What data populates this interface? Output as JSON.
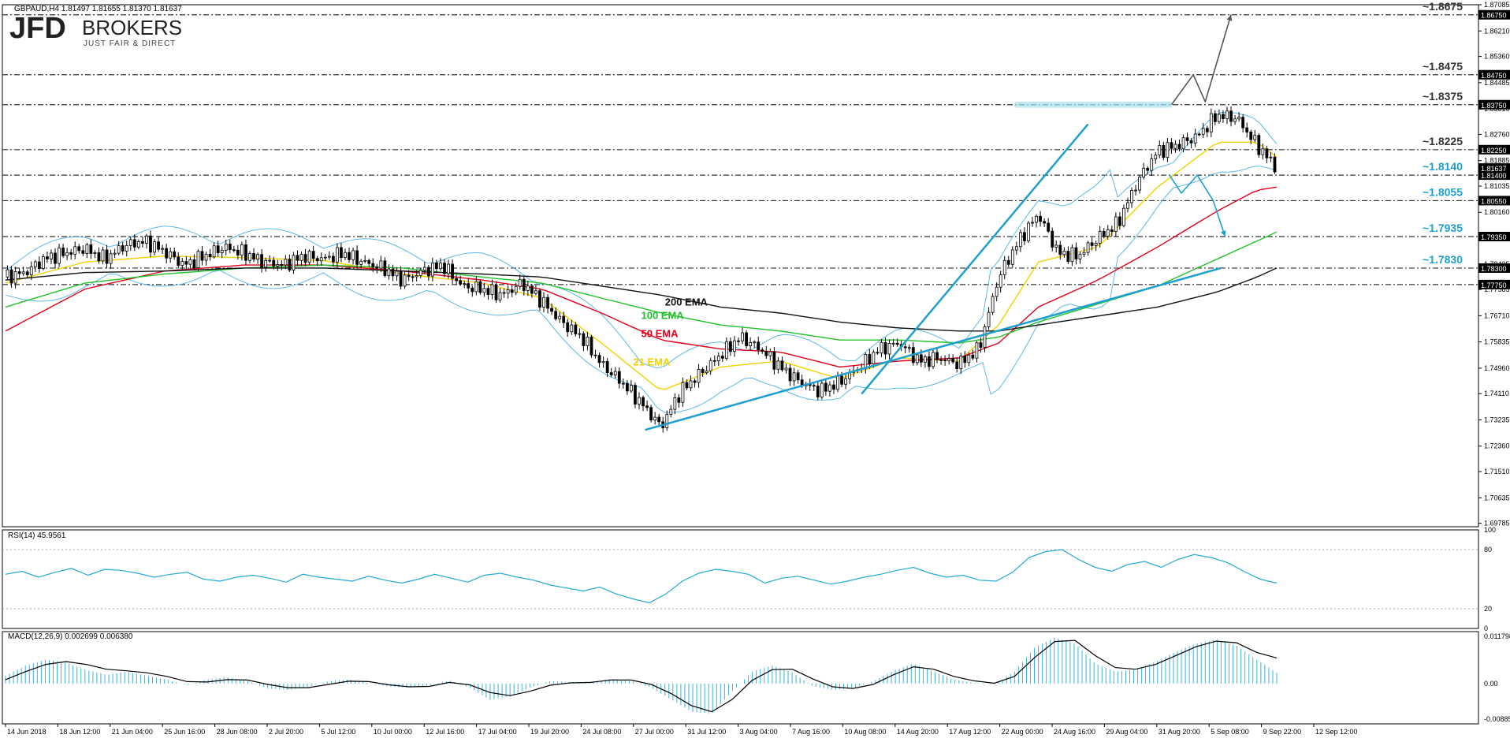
{
  "header": {
    "symbol_line": "GBPAUD,H4  1.81497 1.81655 1.81370 1.81637",
    "brand_main": "JFD",
    "brand_side": "BROKERS",
    "tagline": "JUST FAIR & DIRECT"
  },
  "colors": {
    "candle": "#000000",
    "bollinger": "#5eb8e8",
    "ema21": "#f2d200",
    "ema50": "#e0001a",
    "ema100": "#22c02a",
    "ema200": "#111111",
    "trendline": "#1e9fd0",
    "level_blue": "#1e9fd0",
    "level_dark": "#333333",
    "rsi": "#24a8d4",
    "macd_hist": "#3bb3db",
    "macd_signal": "#000000",
    "arrow_up": "#555555",
    "arrow_down": "#1e9fd0",
    "resistance_band": "#a8e1ef"
  },
  "chart_data": [
    {
      "type": "candlestick",
      "panel": "main",
      "title": "GBPAUD,H4",
      "ohlc_last": {
        "open": 1.81497,
        "high": 1.81655,
        "low": 1.8137,
        "close": 1.81637
      },
      "ylim": [
        1.6967,
        1.87085
      ],
      "y_ticks": [
        "1.87085",
        "1.86210",
        "1.85360",
        "1.84485",
        "1.83610",
        "1.82760",
        "1.81885",
        "1.81035",
        "1.80160",
        "1.79310",
        "1.78435",
        "1.77585",
        "1.76710",
        "1.75835",
        "1.74960",
        "1.74110",
        "1.73235",
        "1.72360",
        "1.71510",
        "1.70635",
        "1.69785"
      ],
      "x_ticks": [
        "14 Jun 2018",
        "18 Jun 12:00",
        "21 Jun 04:00",
        "25 Jun 16:00",
        "28 Jun 08:00",
        "2 Jul 20:00",
        "5 Jul 12:00",
        "10 Jul 00:00",
        "12 Jul 16:00",
        "17 Jul 04:00",
        "19 Jul 20:00",
        "24 Jul 08:00",
        "27 Jul 00:00",
        "31 Jul 12:00",
        "3 Aug 04:00",
        "7 Aug 16:00",
        "10 Aug 08:00",
        "14 Aug 20:00",
        "17 Aug 12:00",
        "22 Aug 00:00",
        "24 Aug 16:00",
        "29 Aug 04:00",
        "31 Aug 20:00",
        "5 Sep 08:00",
        "9 Sep 22:00",
        "12 Sep 12:00"
      ],
      "close_path": [
        [
          0,
          1.78
        ],
        [
          10,
          1.7815
        ],
        [
          20,
          1.7862
        ],
        [
          30,
          1.788
        ],
        [
          40,
          1.7895
        ],
        [
          50,
          1.786
        ],
        [
          60,
          1.7905
        ],
        [
          70,
          1.792
        ],
        [
          80,
          1.7885
        ],
        [
          90,
          1.784
        ],
        [
          100,
          1.787
        ],
        [
          110,
          1.79
        ],
        [
          120,
          1.788
        ],
        [
          130,
          1.785
        ],
        [
          140,
          1.784
        ],
        [
          150,
          1.787
        ],
        [
          160,
          1.786
        ],
        [
          170,
          1.788
        ],
        [
          180,
          1.785
        ],
        [
          190,
          1.783
        ],
        [
          200,
          1.779
        ],
        [
          210,
          1.782
        ],
        [
          220,
          1.784
        ],
        [
          230,
          1.777
        ],
        [
          240,
          1.776
        ],
        [
          250,
          1.774
        ],
        [
          260,
          1.778
        ],
        [
          270,
          1.772
        ],
        [
          280,
          1.765
        ],
        [
          290,
          1.76
        ],
        [
          300,
          1.751
        ],
        [
          310,
          1.745
        ],
        [
          320,
          1.738
        ],
        [
          330,
          1.73
        ],
        [
          340,
          1.742
        ],
        [
          350,
          1.748
        ],
        [
          360,
          1.754
        ],
        [
          370,
          1.76
        ],
        [
          380,
          1.756
        ],
        [
          390,
          1.75
        ],
        [
          400,
          1.745
        ],
        [
          410,
          1.742
        ],
        [
          420,
          1.745
        ],
        [
          430,
          1.75
        ],
        [
          440,
          1.756
        ],
        [
          450,
          1.758
        ],
        [
          460,
          1.752
        ],
        [
          470,
          1.753
        ],
        [
          480,
          1.751
        ],
        [
          490,
          1.756
        ],
        [
          500,
          1.78
        ],
        [
          510,
          1.792
        ],
        [
          520,
          1.801
        ],
        [
          530,
          1.788
        ],
        [
          540,
          1.787
        ],
        [
          550,
          1.793
        ],
        [
          560,
          1.798
        ],
        [
          570,
          1.812
        ],
        [
          580,
          1.822
        ],
        [
          590,
          1.824
        ],
        [
          600,
          1.827
        ],
        [
          610,
          1.834
        ],
        [
          620,
          1.833
        ],
        [
          630,
          1.824
        ],
        [
          640,
          1.8164
        ]
      ],
      "series": [
        {
          "name": "21 EMA",
          "color": "ema21",
          "points": [
            [
              0,
              1.778
            ],
            [
              40,
              1.785
            ],
            [
              80,
              1.787
            ],
            [
              120,
              1.7865
            ],
            [
              160,
              1.7855
            ],
            [
              200,
              1.781
            ],
            [
              240,
              1.778
            ],
            [
              270,
              1.773
            ],
            [
              300,
              1.758
            ],
            [
              330,
              1.742
            ],
            [
              360,
              1.75
            ],
            [
              390,
              1.752
            ],
            [
              420,
              1.746
            ],
            [
              450,
              1.753
            ],
            [
              480,
              1.752
            ],
            [
              500,
              1.764
            ],
            [
              520,
              1.785
            ],
            [
              550,
              1.79
            ],
            [
              580,
              1.81
            ],
            [
              610,
              1.825
            ],
            [
              630,
              1.825
            ],
            [
              640,
              1.82
            ]
          ]
        },
        {
          "name": "50 EMA",
          "color": "ema50",
          "points": [
            [
              0,
              1.762
            ],
            [
              40,
              1.776
            ],
            [
              80,
              1.782
            ],
            [
              120,
              1.784
            ],
            [
              160,
              1.784
            ],
            [
              200,
              1.782
            ],
            [
              240,
              1.779
            ],
            [
              270,
              1.776
            ],
            [
              300,
              1.768
            ],
            [
              330,
              1.759
            ],
            [
              360,
              1.756
            ],
            [
              390,
              1.755
            ],
            [
              420,
              1.75
            ],
            [
              450,
              1.752
            ],
            [
              480,
              1.753
            ],
            [
              500,
              1.758
            ],
            [
              520,
              1.77
            ],
            [
              550,
              1.779
            ],
            [
              580,
              1.79
            ],
            [
              610,
              1.802
            ],
            [
              630,
              1.809
            ],
            [
              640,
              1.81
            ]
          ]
        },
        {
          "name": "100 EMA",
          "color": "ema100",
          "points": [
            [
              0,
              1.77
            ],
            [
              40,
              1.778
            ],
            [
              80,
              1.781
            ],
            [
              120,
              1.783
            ],
            [
              160,
              1.784
            ],
            [
              200,
              1.783
            ],
            [
              240,
              1.78
            ],
            [
              270,
              1.778
            ],
            [
              300,
              1.773
            ],
            [
              330,
              1.768
            ],
            [
              360,
              1.764
            ],
            [
              390,
              1.762
            ],
            [
              420,
              1.759
            ],
            [
              450,
              1.759
            ],
            [
              480,
              1.758
            ],
            [
              500,
              1.76
            ],
            [
              520,
              1.765
            ],
            [
              550,
              1.771
            ],
            [
              580,
              1.777
            ],
            [
              610,
              1.786
            ],
            [
              630,
              1.792
            ],
            [
              640,
              1.795
            ]
          ]
        },
        {
          "name": "200 EMA",
          "color": "ema200",
          "points": [
            [
              0,
              1.779
            ],
            [
              40,
              1.7815
            ],
            [
              80,
              1.782
            ],
            [
              120,
              1.783
            ],
            [
              160,
              1.783
            ],
            [
              200,
              1.782
            ],
            [
              240,
              1.781
            ],
            [
              270,
              1.78
            ],
            [
              300,
              1.777
            ],
            [
              330,
              1.774
            ],
            [
              360,
              1.77
            ],
            [
              390,
              1.768
            ],
            [
              420,
              1.765
            ],
            [
              450,
              1.763
            ],
            [
              480,
              1.762
            ],
            [
              500,
              1.762
            ],
            [
              520,
              1.764
            ],
            [
              550,
              1.767
            ],
            [
              580,
              1.77
            ],
            [
              610,
              1.775
            ],
            [
              630,
              1.78
            ],
            [
              640,
              1.783
            ]
          ]
        }
      ],
      "annotations": [
        {
          "text": "200 EMA",
          "color": "ema200",
          "anchor": [
            332,
            1.7705
          ]
        },
        {
          "text": "100 EMA",
          "color": "ema100",
          "anchor": [
            320,
            1.766
          ]
        },
        {
          "text": "50 EMA",
          "color": "ema50",
          "anchor": [
            320,
            1.76
          ]
        },
        {
          "text": "21 EMA",
          "color": "ema21",
          "anchor": [
            316,
            1.7505
          ]
        }
      ],
      "levels": [
        {
          "label": "~1.8675",
          "value": 1.8675,
          "tag": "1.86750",
          "color": "level_dark"
        },
        {
          "label": "~1.8475",
          "value": 1.8475,
          "tag": "1.84750",
          "color": "level_dark"
        },
        {
          "label": "~1.8375",
          "value": 1.8375,
          "tag": "1.83750",
          "color": "level_dark"
        },
        {
          "label": "~1.8225",
          "value": 1.8225,
          "tag": "1.82250",
          "color": "level_dark"
        },
        {
          "label": "~1.8140",
          "value": 1.814,
          "tag": "1.81400",
          "color": "level_blue"
        },
        {
          "label": "~1.8055",
          "value": 1.8055,
          "tag": "1.80550",
          "color": "level_blue"
        },
        {
          "label": "~1.7935",
          "value": 1.7935,
          "tag": "1.79350",
          "color": "level_blue"
        },
        {
          "label": "~1.7830",
          "value": 1.783,
          "tag": "1.78300",
          "color": "level_blue"
        },
        {
          "label": "",
          "value": 1.7775,
          "tag": "1.77750",
          "color": "level_dark"
        }
      ],
      "current_price_tag": "1.81637",
      "trendlines": [
        {
          "name": "lower-support",
          "from": [
            322,
            1.729
          ],
          "to": [
            612,
            1.783
          ]
        },
        {
          "name": "steep-support",
          "from": [
            431,
            1.741
          ],
          "to": [
            545,
            1.831
          ]
        }
      ],
      "resistance_band": {
        "from": 1.8365,
        "to": 1.8385,
        "x_from": 508,
        "x_to": 587
      },
      "arrows": [
        {
          "name": "upside-scenario",
          "points": [
            [
              587,
              1.8375
            ],
            [
              598,
              1.8475
            ],
            [
              604,
              1.8385
            ],
            [
              617,
              1.8675
            ]
          ]
        },
        {
          "name": "downside-scenario",
          "points": [
            [
              586,
              1.814
            ],
            [
              592,
              1.808
            ],
            [
              600,
              1.814
            ],
            [
              608,
              1.8055
            ],
            [
              614,
              1.7935
            ]
          ]
        }
      ]
    },
    {
      "type": "line",
      "panel": "rsi",
      "title": "RSI(14) 45.9561",
      "ylim": [
        0,
        100
      ],
      "y_ticks": [
        "100",
        "80",
        "20",
        "0"
      ],
      "series": [
        {
          "name": "RSI(14)",
          "values": [
            55,
            58,
            52,
            57,
            61,
            54,
            60,
            59,
            56,
            52,
            55,
            57,
            50,
            48,
            52,
            54,
            51,
            47,
            55,
            52,
            50,
            48,
            53,
            49,
            46,
            50,
            55,
            51,
            47,
            54,
            56,
            52,
            49,
            44,
            41,
            38,
            42,
            35,
            30,
            26,
            35,
            48,
            56,
            60,
            58,
            55,
            46,
            51,
            53,
            49,
            45,
            48,
            52,
            55,
            59,
            62,
            56,
            52,
            54,
            49,
            48,
            57,
            72,
            78,
            80,
            70,
            62,
            58,
            65,
            68,
            62,
            70,
            75,
            72,
            67,
            58,
            50,
            46
          ]
        }
      ]
    },
    {
      "type": "bar",
      "panel": "macd",
      "title": "MACD(12,26,9) 0.002699 0.006380",
      "ylim": [
        -0.008859,
        0.011798
      ],
      "y_ticks": [
        "0.011798",
        "0.00",
        "-0.008859"
      ],
      "series": [
        {
          "name": "MACD(12,26,9)",
          "values": [
            0.002,
            0.0045,
            0.006,
            0.0052,
            0.0034,
            0.0022,
            0.003,
            0.002,
            0.001,
            -0.0004,
            0.001,
            0.0016,
            0.0006,
            -0.0012,
            -0.0016,
            -0.0008,
            0.0006,
            0.001,
            0.0002,
            -0.0008,
            -0.001,
            -0.0004,
            0.0008,
            -0.001,
            -0.004,
            -0.0032,
            -0.001,
            0.0006,
            0.0004,
            0.0002,
            0.0012,
            0.0006,
            -0.001,
            -0.004,
            -0.007,
            -0.0075,
            -0.002,
            0.003,
            0.0045,
            0.0028,
            -0.0006,
            -0.0015,
            -0.0012,
            0.0006,
            0.0032,
            0.005,
            0.003,
            0.001,
            0.0002,
            -0.0002,
            0.003,
            0.009,
            0.0115,
            0.01,
            0.005,
            0.003,
            0.0035,
            0.0055,
            0.008,
            0.01,
            0.011,
            0.0095,
            0.006,
            0.0027
          ]
        },
        {
          "name": "signal",
          "values": [
            0.001,
            0.003,
            0.0048,
            0.0055,
            0.0048,
            0.0036,
            0.0032,
            0.0027,
            0.0018,
            0.0005,
            0.0004,
            0.001,
            0.0009,
            -0.0002,
            -0.001,
            -0.001,
            -0.0002,
            0.0006,
            0.0005,
            -0.0003,
            -0.0008,
            -0.0007,
            0.0003,
            -0.0003,
            -0.0022,
            -0.003,
            -0.0019,
            -0.0004,
            0.0002,
            0.0003,
            0.0009,
            0.0009,
            -0.0002,
            -0.0025,
            -0.0055,
            -0.007,
            -0.004,
            0.0008,
            0.0035,
            0.0036,
            0.0012,
            -0.0008,
            -0.0012,
            -0.0002,
            0.0022,
            0.0042,
            0.0036,
            0.0018,
            0.0007,
            0.0001,
            0.0018,
            0.0065,
            0.0105,
            0.0108,
            0.007,
            0.004,
            0.0036,
            0.0048,
            0.007,
            0.0092,
            0.0106,
            0.0102,
            0.0078,
            0.0064
          ]
        }
      ]
    }
  ]
}
